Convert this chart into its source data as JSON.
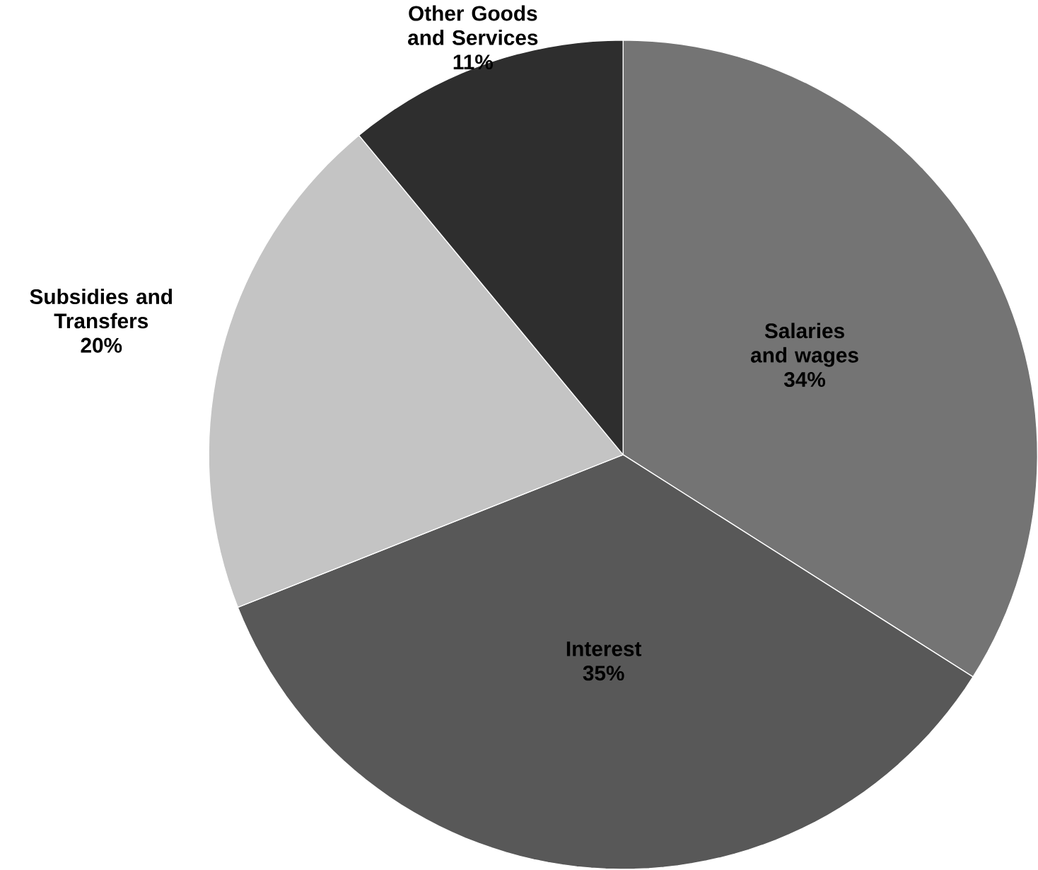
{
  "chart_data": {
    "type": "pie",
    "categories": [
      "Salaries and wages",
      "Interest",
      "Subsidies and Transfers",
      "Other Goods and Services"
    ],
    "values": [
      34,
      35,
      20,
      11
    ],
    "value_labels": [
      "34%",
      "35%",
      "20%",
      "11%"
    ],
    "colors": [
      "#747474",
      "#585858",
      "#c4c4c4",
      "#2e2e2e"
    ]
  }
}
